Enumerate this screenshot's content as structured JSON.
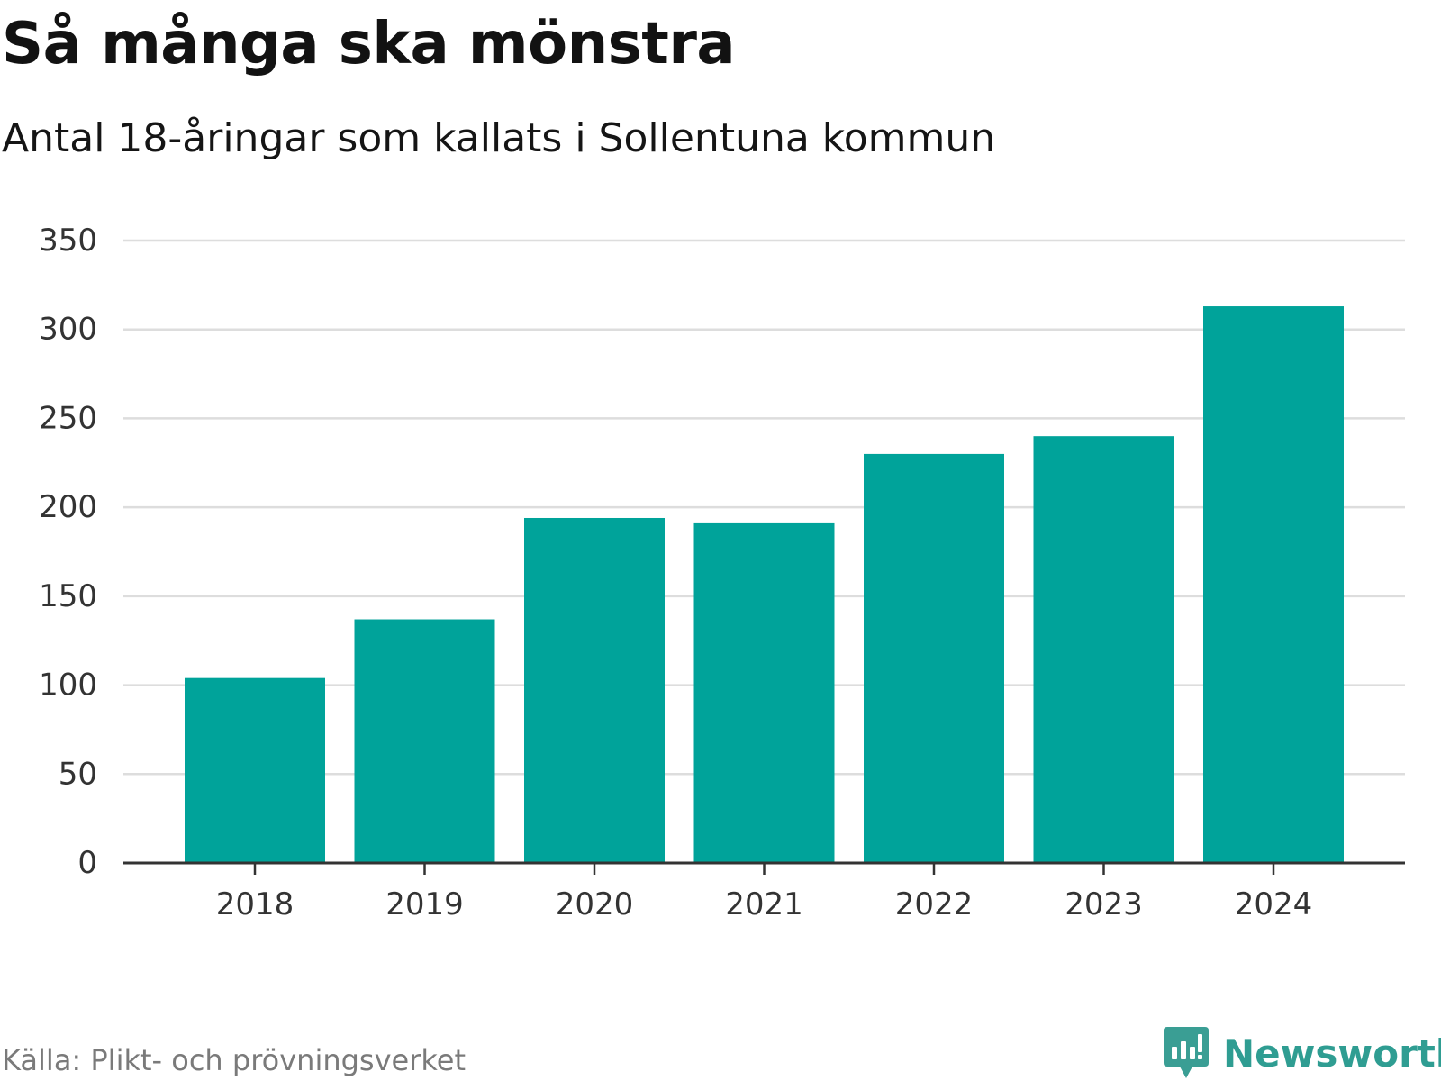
{
  "chart_data": {
    "type": "bar",
    "title": "Så många ska mönstra",
    "subtitle": "Antal 18-åringar som kallats i Sollentuna kommun",
    "categories": [
      "2018",
      "2019",
      "2020",
      "2021",
      "2022",
      "2023",
      "2024"
    ],
    "values": [
      104,
      137,
      194,
      191,
      230,
      240,
      313
    ],
    "ylim": [
      0,
      350
    ],
    "yticks": [
      "0",
      "50",
      "100",
      "150",
      "200",
      "250",
      "300",
      "350"
    ],
    "xlabel": "",
    "ylabel": "",
    "grid": true,
    "bar_color": "#00a39a"
  },
  "source": "Källa: Plikt- och prövningsverket",
  "brand": {
    "name": "Newsworthy",
    "icon": "newsworthy-logo-icon",
    "color": "#2f9d92"
  }
}
